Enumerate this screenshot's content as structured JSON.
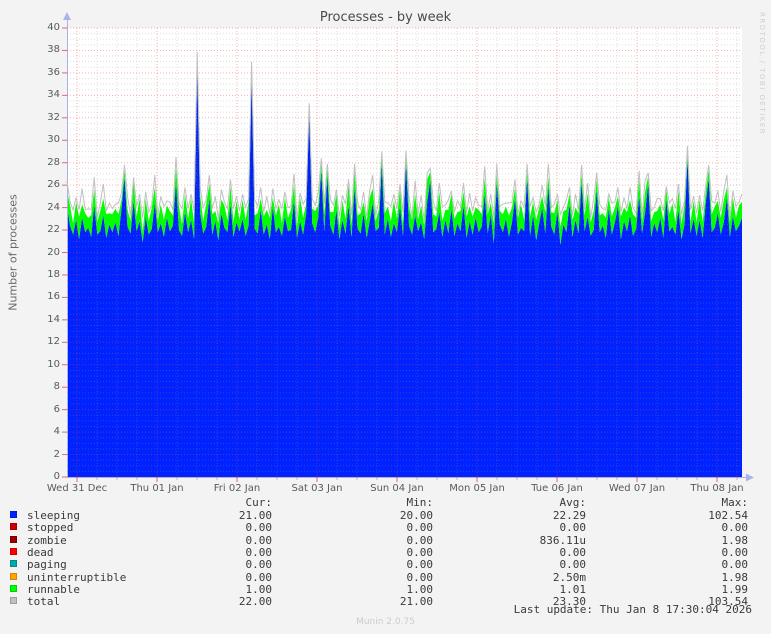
{
  "title": "Processes - by week",
  "y_axis_label": "Number of processes",
  "watermark": "RRDTOOL / TOBI OETIKER",
  "footer": {
    "last_update": "Last update: Thu Jan  8 17:30:04 2026",
    "munin_version": "Munin 2.0.75"
  },
  "colors": {
    "page_background": "#f3f3f3",
    "plot_background": "#ffffff",
    "major_grid": "#ff4d4d",
    "minor_grid": "#bcbcbc",
    "axis": "#aab4e8",
    "title_text": "#4a4a4a",
    "tick_text": "#5a5a5a"
  },
  "stats": {
    "headers": [
      "Cur:",
      "Min:",
      "Avg:",
      "Max:"
    ],
    "rows": [
      {
        "label": "sleeping",
        "color": "#0022ff",
        "cur": "21.00",
        "min": "20.00",
        "avg": "22.29",
        "max": "102.54"
      },
      {
        "label": "stopped",
        "color": "#cc0000",
        "cur": "0.00",
        "min": "0.00",
        "avg": "0.00",
        "max": "0.00"
      },
      {
        "label": "zombie",
        "color": "#990000",
        "cur": "0.00",
        "min": "0.00",
        "avg": "836.11u",
        "max": "1.98"
      },
      {
        "label": "dead",
        "color": "#ff0000",
        "cur": "0.00",
        "min": "0.00",
        "avg": "0.00",
        "max": "0.00"
      },
      {
        "label": "paging",
        "color": "#00aaaa",
        "cur": "0.00",
        "min": "0.00",
        "avg": "0.00",
        "max": "0.00"
      },
      {
        "label": "uninterruptible",
        "color": "#ffa500",
        "cur": "0.00",
        "min": "0.00",
        "avg": "2.50m",
        "max": "1.98"
      },
      {
        "label": "runnable",
        "color": "#00ff00",
        "cur": "1.00",
        "min": "1.00",
        "avg": "1.01",
        "max": "1.99"
      },
      {
        "label": "total",
        "color": "#c0c0c0",
        "cur": "22.00",
        "min": "21.00",
        "avg": "23.30",
        "max": "103.54"
      }
    ]
  },
  "chart_data": {
    "type": "area",
    "title": "Processes - by week",
    "ylabel": "Number of processes",
    "ylim": [
      0,
      40
    ],
    "y_major_step": 2,
    "y_minor_step": 0.5,
    "x_minor_step_days": 0.25,
    "grid": true,
    "legend_position": "bottom",
    "x_tick_labels": [
      "Wed 31 Dec",
      "Thu 01 Jan",
      "Fri 02 Jan",
      "Sat 03 Jan",
      "Sun 04 Jan",
      "Mon 05 Jan",
      "Tue 06 Jan",
      "Wed 07 Jan",
      "Thu 08 Jan"
    ],
    "sampling_note": "224 evenly spaced samples across the visible week; values estimated from pixels",
    "zero_series": [
      "stopped",
      "zombie",
      "dead",
      "paging",
      "uninterruptible"
    ],
    "series": [
      {
        "name": "sleeping",
        "render": "area",
        "color": "#0022ff",
        "values": [
          24.2,
          22.4,
          21.6,
          22.9,
          21.2,
          23.1,
          21.8,
          22.2,
          21.4,
          24.2,
          21.6,
          21.9,
          23.3,
          21.3,
          22.5,
          21.8,
          22.7,
          21.5,
          23.9,
          26.8,
          22.3,
          21.7,
          24.6,
          21.9,
          22.8,
          20.9,
          23.2,
          21.6,
          22.1,
          24.4,
          21.8,
          22.6,
          21.4,
          23.1,
          21.9,
          22.4,
          26.2,
          22.0,
          21.5,
          23.6,
          21.8,
          22.9,
          21.2,
          37.1,
          23.4,
          21.7,
          22.3,
          24.8,
          21.6,
          22.8,
          21.1,
          23.5,
          22.2,
          21.8,
          24.3,
          21.4,
          22.7,
          21.9,
          23.0,
          21.5,
          22.4,
          36.1,
          22.1,
          21.7,
          23.8,
          21.6,
          22.5,
          21.2,
          24.0,
          21.8,
          22.3,
          21.5,
          23.2,
          21.9,
          22.0,
          24.6,
          21.3,
          22.8,
          21.6,
          23.4,
          32.4,
          22.6,
          21.8,
          23.1,
          27.3,
          21.9,
          26.8,
          22.4,
          21.6,
          23.8,
          21.2,
          22.9,
          21.7,
          24.2,
          21.4,
          25.8,
          22.1,
          21.7,
          23.5,
          21.3,
          22.8,
          24.4,
          21.9,
          22.2,
          27.9,
          21.6,
          23.0,
          21.4,
          22.6,
          21.8,
          24.1,
          21.5,
          28.1,
          22.4,
          21.6,
          23.3,
          21.9,
          22.7,
          21.2,
          24.5,
          26.4,
          21.8,
          22.1,
          23.6,
          21.4,
          22.9,
          21.7,
          23.9,
          21.5,
          22.6,
          21.9,
          24.2,
          21.3,
          22.8,
          21.6,
          23.1,
          21.8,
          22.3,
          25.2,
          21.7,
          23.4,
          20.8,
          26.2,
          22.5,
          21.8,
          23.0,
          21.4,
          22.7,
          24.8,
          21.6,
          22.2,
          21.9,
          26.7,
          21.5,
          23.3,
          21.1,
          22.6,
          24.0,
          21.7,
          25.9,
          22.3,
          21.6,
          23.7,
          20.7,
          22.5,
          21.8,
          24.3,
          21.4,
          22.9,
          21.7,
          26.3,
          21.9,
          23.2,
          21.5,
          22.0,
          25.6,
          21.8,
          22.4,
          21.3,
          23.9,
          21.6,
          22.7,
          24.1,
          21.2,
          22.8,
          21.9,
          23.3,
          21.5,
          22.1,
          25.0,
          21.7,
          23.6,
          26.1,
          21.4,
          22.6,
          21.8,
          23.1,
          21.3,
          24.7,
          21.9,
          22.3,
          21.6,
          23.8,
          21.2,
          22.5,
          28.4,
          21.7,
          23.0,
          21.5,
          22.9,
          21.3,
          24.4,
          26.6,
          21.8,
          22.2,
          23.5,
          21.6,
          22.7,
          24.9,
          21.4,
          23.2,
          21.9,
          22.4,
          23.1
        ]
      },
      {
        "name": "runnable",
        "render": "area_stacked_on_sleeping",
        "color": "#00ff00",
        "values": [
          1.3,
          1.8,
          1.0,
          1.6,
          2.0,
          1.2,
          1.7,
          0.9,
          1.9,
          1.4,
          1.1,
          1.8,
          1.5,
          2.1,
          1.0,
          1.6,
          1.2,
          1.9,
          0.8,
          0.6,
          1.5,
          1.1,
          1.8,
          1.3,
          2.0,
          0.9,
          1.6,
          1.2,
          1.9,
          1.4,
          1.0,
          1.7,
          1.5,
          1.1,
          1.8,
          0.9,
          1.3,
          2.1,
          1.0,
          1.6,
          1.2,
          1.9,
          1.4,
          0.5,
          1.7,
          1.1,
          2.0,
          1.3,
          1.8,
          0.9,
          1.5,
          1.2,
          2.0,
          1.1,
          1.6,
          1.3,
          1.9,
          1.0,
          1.7,
          1.4,
          2.1,
          0.5,
          1.2,
          1.8,
          1.0,
          1.6,
          1.3,
          1.9,
          0.9,
          1.5,
          2.0,
          1.1,
          1.7,
          1.2,
          1.8,
          1.4,
          1.0,
          2.1,
          1.5,
          0.9,
          0.6,
          1.3,
          1.9,
          1.1,
          0.7,
          1.6,
          0.8,
          1.2,
          2.0,
          1.4,
          1.0,
          1.7,
          1.3,
          1.9,
          1.1,
          1.5,
          1.2,
          1.8,
          1.0,
          1.5,
          2.1,
          1.3,
          0.9,
          1.6,
          0.7,
          1.9,
          1.1,
          1.4,
          2.0,
          1.2,
          1.6,
          1.0,
          0.6,
          1.7,
          1.3,
          1.9,
          1.0,
          1.5,
          1.2,
          2.0,
          0.8,
          1.6,
          1.1,
          1.8,
          1.4,
          0.9,
          2.1,
          1.3,
          1.5,
          1.0,
          1.8,
          1.2,
          1.9,
          1.3,
          1.6,
          0.9,
          2.0,
          1.1,
          1.4,
          1.7,
          1.0,
          1.8,
          0.7,
          1.2,
          1.6,
          1.1,
          1.9,
          1.3,
          0.9,
          1.5,
          2.1,
          1.0,
          0.6,
          1.7,
          1.2,
          1.8,
          1.4,
          1.0,
          1.9,
          0.8,
          1.3,
          1.9,
          1.0,
          1.6,
          1.2,
          2.0,
          0.9,
          1.5,
          1.1,
          1.8,
          0.7,
          1.4,
          2.1,
          1.2,
          1.7,
          0.9,
          1.5,
          1.1,
          1.8,
          1.0,
          1.6,
          1.3,
          0.9,
          2.0,
          1.2,
          1.7,
          1.4,
          1.9,
          1.0,
          1.5,
          1.1,
          1.8,
          0.7,
          1.4,
          1.0,
          1.9,
          1.2,
          1.6,
          0.9,
          1.5,
          2.1,
          1.1,
          1.7,
          1.3,
          1.8,
          0.6,
          1.0,
          1.6,
          1.2,
          1.8,
          1.4,
          1.0,
          0.8,
          1.6,
          1.9,
          1.1,
          1.5,
          2.0,
          0.9,
          1.3,
          1.7,
          1.2,
          1.8,
          1.4
        ]
      },
      {
        "name": "total",
        "render": "line",
        "color": "#c0c0c0",
        "definition": "total = sleeping + runnable + offset_above_stack",
        "offset_above_stack": [
          0.9,
          0.3,
          1.2,
          0.4,
          0.6,
          1.4,
          0.3,
          0.8,
          0.5,
          1.1,
          0.4,
          0.7,
          1.3,
          0.3,
          0.9,
          0.5,
          0.4,
          1.0,
          0.6,
          0.4,
          1.2,
          0.5,
          0.3,
          0.9,
          0.4,
          1.3,
          0.6,
          0.8,
          0.3,
          1.1,
          0.5,
          0.7,
          1.2,
          0.4,
          0.8,
          0.5,
          1.0,
          0.3,
          1.4,
          0.6,
          0.9,
          0.4,
          1.1,
          0.3,
          0.7,
          1.2,
          0.4,
          0.8,
          0.5,
          1.3,
          0.4,
          0.9,
          0.3,
          1.0,
          0.6,
          1.2,
          0.4,
          0.8,
          0.5,
          1.1,
          0.3,
          0.4,
          1.4,
          0.6,
          1.0,
          0.4,
          1.2,
          0.3,
          0.8,
          0.6,
          0.4,
          1.3,
          0.5,
          0.9,
          0.3,
          1.0,
          0.7,
          0.4,
          1.2,
          0.5,
          0.3,
          0.9,
          0.5,
          1.1,
          0.4,
          0.8,
          0.3,
          1.2,
          0.6,
          0.4,
          1.0,
          0.5,
          1.3,
          0.4,
          0.8,
          0.6,
          1.1,
          0.3,
          0.9,
          0.4,
          0.6,
          1.2,
          0.5,
          0.8,
          0.4,
          1.0,
          0.3,
          1.3,
          0.6,
          0.9,
          0.4,
          1.1,
          0.4,
          0.8,
          0.3,
          1.2,
          0.5,
          0.9,
          0.4,
          0.6,
          0.3,
          1.1,
          0.5,
          0.8,
          1.3,
          0.4,
          0.9,
          0.3,
          0.6,
          1.0,
          0.4,
          0.8,
          0.3,
          1.2,
          0.5,
          0.9,
          0.4,
          0.7,
          1.1,
          0.3,
          0.8,
          0.5,
          1.0,
          0.4,
          0.9,
          0.3,
          1.1,
          0.5,
          0.8,
          0.4,
          0.3,
          1.2,
          0.6,
          0.9,
          0.4,
          0.7,
          0.3,
          1.0,
          0.5,
          1.2,
          0.4,
          0.8,
          0.5,
          1.1,
          0.3,
          0.9,
          0.6,
          0.4,
          1.2,
          0.3,
          0.8,
          0.5,
          0.9,
          0.4,
          1.1,
          0.6,
          1.0,
          0.4,
          0.7,
          0.3,
          1.2,
          0.5,
          0.8,
          0.4,
          0.9,
          0.3,
          1.1,
          0.6,
          0.4,
          0.8,
          0.5,
          1.0,
          0.3,
          0.9,
          0.4,
          1.1,
          0.5,
          0.8,
          0.3,
          1.0,
          0.4,
          1.2,
          0.6,
          0.9,
          0.3,
          0.5,
          1.1,
          0.4,
          0.8,
          0.4,
          1.0,
          0.6,
          0.4,
          1.2,
          0.3,
          0.9,
          0.5,
          0.8,
          1.1,
          0.4,
          0.6,
          1.0,
          0.3,
          0.7
        ]
      }
    ]
  }
}
